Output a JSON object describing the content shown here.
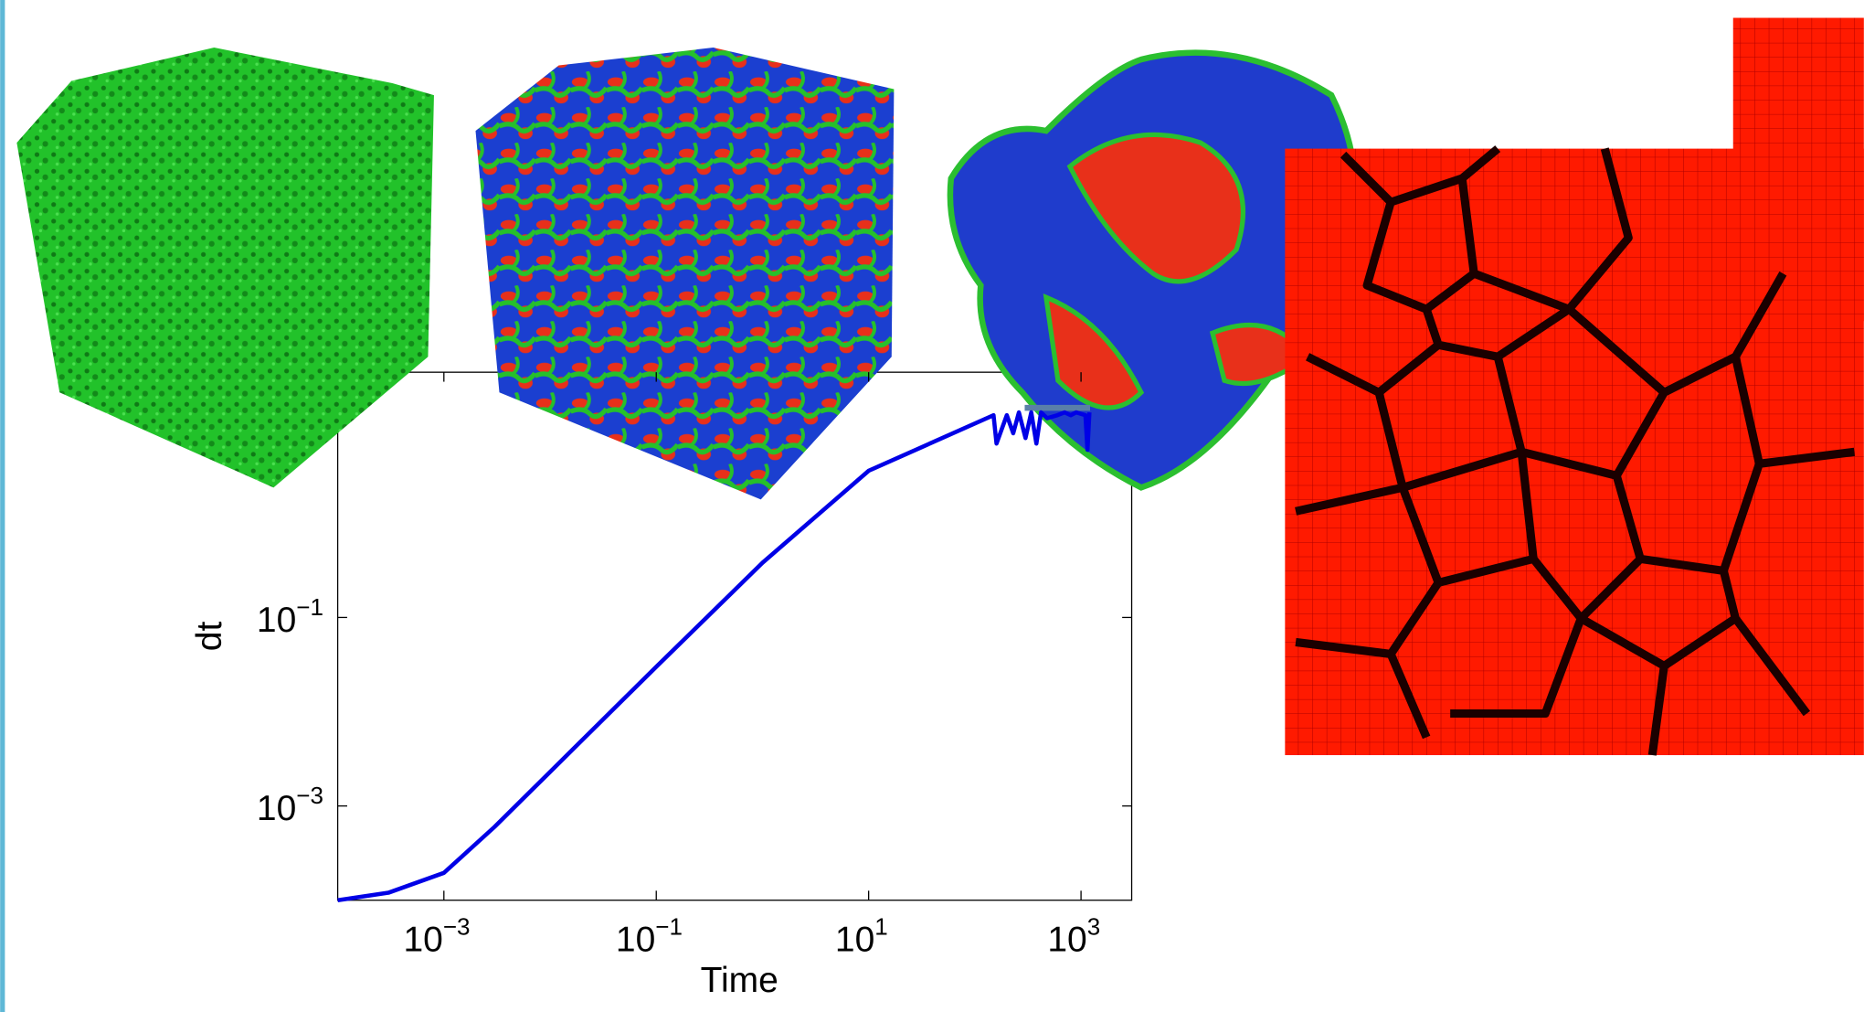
{
  "chart_data": {
    "type": "line",
    "xlabel": "Time",
    "ylabel": "dt",
    "log_x": true,
    "log_y": true,
    "grid": false,
    "color": "#0000e6",
    "x": [
      0.0001,
      0.0003,
      0.001,
      0.003,
      0.01,
      0.1,
      1,
      10,
      150,
      160,
      200,
      230,
      260,
      300,
      340,
      380,
      420,
      480,
      600,
      700,
      800,
      900,
      1100,
      1150,
      1200
    ],
    "values": [
      0.0001,
      0.00012,
      0.000195,
      0.0006,
      0.0023,
      0.03,
      0.38,
      3.6,
      14,
      7,
      14,
      9,
      15,
      8,
      15,
      7,
      15,
      13,
      14,
      15,
      14,
      15,
      14,
      6,
      15
    ],
    "xlim": [
      0.0001,
      3000
    ],
    "ylim": [
      0.0001,
      40
    ],
    "xticks": [
      {
        "value": 0.001,
        "label": "10−3"
      },
      {
        "value": 0.1,
        "label": "10−1"
      },
      {
        "value": 10,
        "label": "101"
      },
      {
        "value": 1000,
        "label": "103"
      }
    ],
    "yticks": [
      {
        "value": 0.001,
        "label": "10−3"
      },
      {
        "value": 0.1,
        "label": "10−1"
      }
    ]
  }
}
